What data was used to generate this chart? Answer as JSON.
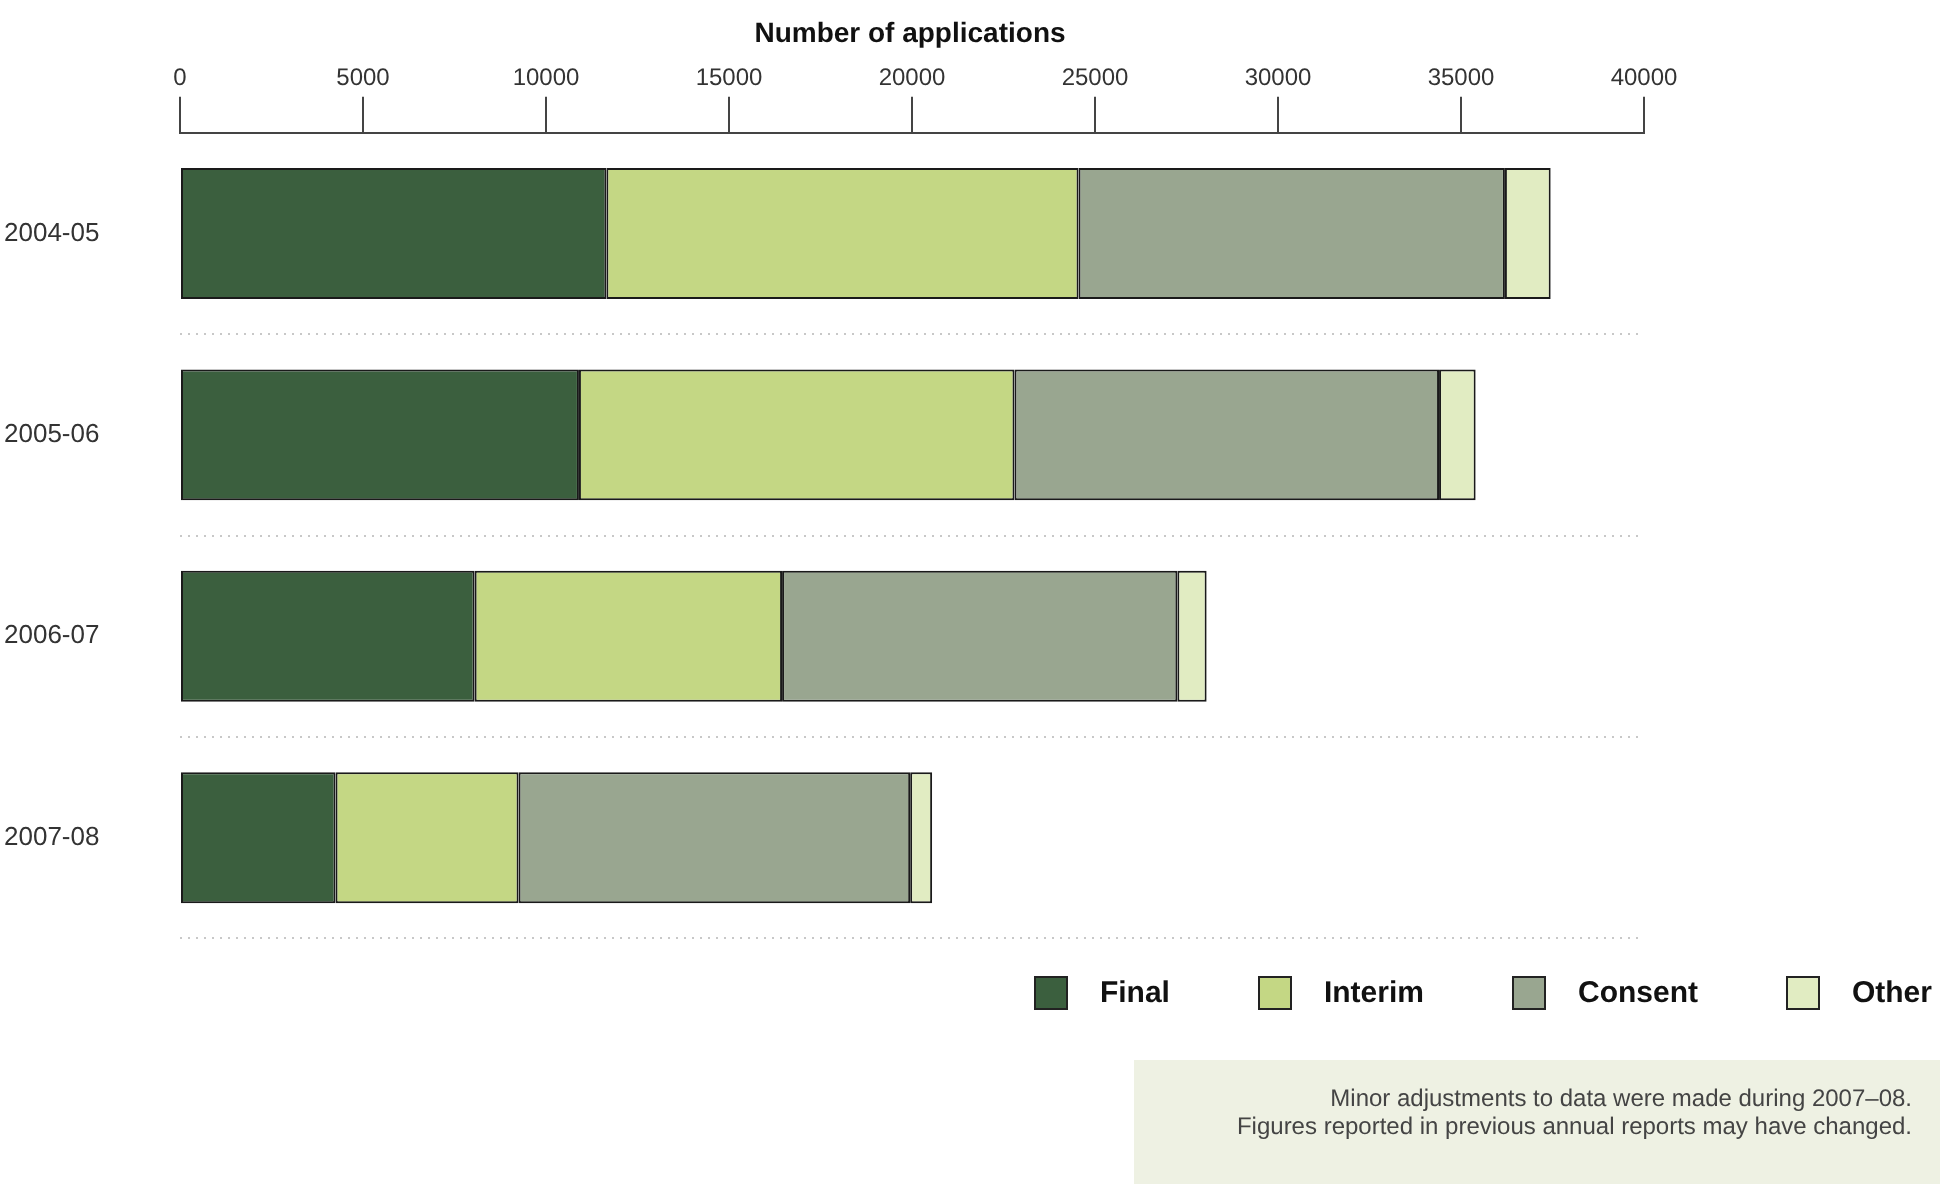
{
  "chart_data": {
    "type": "bar",
    "orientation": "horizontal",
    "stacked": true,
    "title": "Number of applications",
    "categories": [
      "2004-05",
      "2005-06",
      "2006-07",
      "2007-08"
    ],
    "series": [
      {
        "name": "Final",
        "color": "#3b5f3e",
        "values": [
          11650,
          10900,
          8050,
          4250
        ]
      },
      {
        "name": "Interim",
        "color": "#c4d784",
        "values": [
          12900,
          11900,
          8400,
          5000
        ]
      },
      {
        "name": "Consent",
        "color": "#99a690",
        "values": [
          11650,
          11600,
          10800,
          10700
        ]
      },
      {
        "name": "Other",
        "color": "#e1ecc2",
        "values": [
          1250,
          1000,
          800,
          600
        ]
      }
    ],
    "xlim": [
      0,
      40000
    ],
    "xticks": [
      0,
      5000,
      10000,
      15000,
      20000,
      25000,
      30000,
      35000,
      40000
    ],
    "grid": "y",
    "legend": "bottom right",
    "annotations": [
      "Minor adjustments to data were made during 2007–08.",
      "Figures reported in previous annual reports may have changed."
    ]
  }
}
